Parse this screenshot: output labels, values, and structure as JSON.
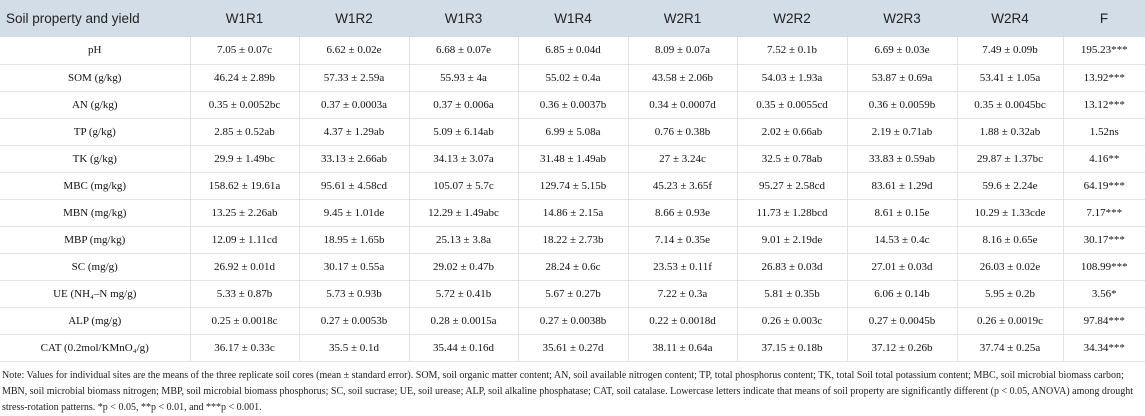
{
  "header": [
    "Soil property and yield",
    "W1R1",
    "W1R2",
    "W1R3",
    "W1R4",
    "W2R1",
    "W2R2",
    "W2R3",
    "W2R4",
    "F"
  ],
  "rows": [
    [
      "pH",
      "7.05 ± 0.07c",
      "6.62 ± 0.02e",
      "6.68 ± 0.07e",
      "6.85 ± 0.04d",
      "8.09 ± 0.07a",
      "7.52 ± 0.1b",
      "6.69 ± 0.03e",
      "7.49 ± 0.09b",
      "195.23***"
    ],
    [
      "SOM (g/kg)",
      "46.24 ± 2.89b",
      "57.33 ± 2.59a",
      "55.93 ± 4a",
      "55.02 ± 0.4a",
      "43.58 ± 2.06b",
      "54.03 ± 1.93a",
      "53.87 ± 0.69a",
      "53.41 ± 1.05a",
      "13.92***"
    ],
    [
      "AN (g/kg)",
      "0.35 ± 0.0052bc",
      "0.37 ± 0.0003a",
      "0.37 ± 0.006a",
      "0.36 ± 0.0037b",
      "0.34 ± 0.0007d",
      "0.35 ± 0.0055cd",
      "0.36 ± 0.0059b",
      "0.35 ± 0.0045bc",
      "13.12***"
    ],
    [
      "TP (g/kg)",
      "2.85 ± 0.52ab",
      "4.37 ± 1.29ab",
      "5.09 ± 6.14ab",
      "6.99 ± 5.08a",
      "0.76 ± 0.38b",
      "2.02 ± 0.66ab",
      "2.19 ± 0.71ab",
      "1.88 ± 0.32ab",
      "1.52ns"
    ],
    [
      "TK (g/kg)",
      "29.9 ± 1.49bc",
      "33.13 ± 2.66ab",
      "34.13 ± 3.07a",
      "31.48 ± 1.49ab",
      "27 ± 3.24c",
      "32.5 ± 0.78ab",
      "33.83 ± 0.59ab",
      "29.87 ± 1.37bc",
      "4.16**"
    ],
    [
      "MBC (mg/kg)",
      "158.62 ± 19.61a",
      "95.61 ± 4.58cd",
      "105.07 ± 5.7c",
      "129.74 ± 5.15b",
      "45.23 ± 3.65f",
      "95.27 ± 2.58cd",
      "83.61 ± 1.29d",
      "59.6 ± 2.24e",
      "64.19***"
    ],
    [
      "MBN (mg/kg)",
      "13.25 ± 2.26ab",
      "9.45 ± 1.01de",
      "12.29 ± 1.49abc",
      "14.86 ± 2.15a",
      "8.66 ± 0.93e",
      "11.73 ± 1.28bcd",
      "8.61 ± 0.15e",
      "10.29 ± 1.33cde",
      "7.17***"
    ],
    [
      "MBP (mg/kg)",
      "12.09 ± 1.11cd",
      "18.95 ± 1.65b",
      "25.13 ± 3.8a",
      "18.22 ± 2.73b",
      "7.14 ± 0.35e",
      "9.01 ± 2.19de",
      "14.53 ± 0.4c",
      "8.16 ± 0.65e",
      "30.17***"
    ],
    [
      "SC (mg/g)",
      "26.92 ± 0.01d",
      "30.17 ± 0.55a",
      "29.02 ± 0.47b",
      "28.24 ± 0.6c",
      "23.53 ± 0.11f",
      "26.83 ± 0.03d",
      "27.01 ± 0.03d",
      "26.03 ± 0.02e",
      "108.99***"
    ],
    [
      "UE (NH₄–N mg/g)",
      "5.33 ± 0.87b",
      "5.73 ± 0.93b",
      "5.72 ± 0.41b",
      "5.67 ± 0.27b",
      "7.22 ± 0.3a",
      "5.81 ± 0.35b",
      "6.06 ± 0.14b",
      "5.95 ± 0.2b",
      "3.56*"
    ],
    [
      "ALP (mg/g)",
      "0.25 ± 0.0018c",
      "0.27 ± 0.0053b",
      "0.28 ± 0.0015a",
      "0.27 ± 0.0038b",
      "0.22 ± 0.0018d",
      "0.26 ± 0.003c",
      "0.27 ± 0.0045b",
      "0.26 ± 0.0019c",
      "97.84***"
    ],
    [
      "CAT (0.2mol/KMnO₄/g)",
      "36.17 ± 0.33c",
      "35.5 ± 0.1d",
      "35.44 ± 0.16d",
      "35.61 ± 0.27d",
      "38.11 ± 0.64a",
      "37.15 ± 0.18b",
      "37.12 ± 0.26b",
      "37.74 ± 0.25a",
      "34.34***"
    ]
  ],
  "note": "Note: Values for individual sites are the means of the three replicate soil cores (mean ± standard error). SOM, soil organic matter content; AN, soil available nitrogen content; TP, total phosphorus content; TK, total Soil total potassium content; MBC, soil microbial biomass carbon; MBN, soil microbial biomass nitrogen; MBP, soil microbial biomass phosphorus; SC, soil sucrase; UE, soil urease; ALP, soil alkaline phosphatase; CAT, soil catalase. Lowercase letters indicate that means of soil property are significantly different (p < 0.05, ANOVA) among drought stress-rotation patterns. *p < 0.05, **p < 0.01, and ***p < 0.001.",
  "colors": {
    "header_bg": "#d3dde7",
    "grid": "#e3e3e3"
  }
}
